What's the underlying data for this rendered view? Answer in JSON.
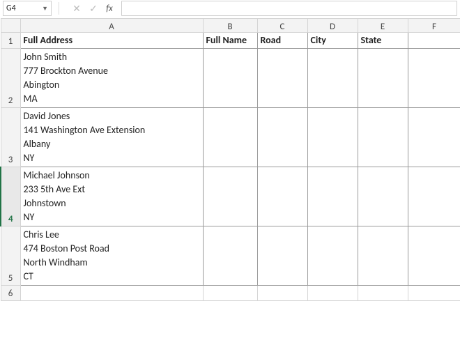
{
  "namebox": {
    "ref": "G4"
  },
  "fx": {
    "cancel_glyph": "✕",
    "confirm_glyph": "✓",
    "fx_glyph": "fx",
    "value": ""
  },
  "col_headers": [
    "A",
    "B",
    "C",
    "D",
    "E",
    "F"
  ],
  "row_headers": [
    "1",
    "2",
    "3",
    "4",
    "5",
    "6"
  ],
  "highlight_row_index": 3,
  "headers": {
    "A": "Full Address",
    "B": "Full Name",
    "C": "Road",
    "D": "City",
    "E": "State"
  },
  "records": [
    {
      "lines": [
        "John Smith",
        "777 Brockton Avenue",
        "Abington",
        "MA"
      ]
    },
    {
      "lines": [
        "David Jones",
        "141 Washington Ave Extension",
        "Albany",
        "NY"
      ]
    },
    {
      "lines": [
        "Michael Johnson",
        "233 5th Ave Ext",
        "Johnstown",
        "NY"
      ]
    },
    {
      "lines": [
        "Chris Lee",
        "474 Boston Post Road",
        "North Windham",
        "CT"
      ]
    }
  ],
  "style": {
    "header_bg": "#f3f3f3",
    "gridline": "#d4d4d4",
    "data_border": "#9a9a9a",
    "accent": "#217346",
    "font_family": "Calibri",
    "font_size_pt": 11
  }
}
